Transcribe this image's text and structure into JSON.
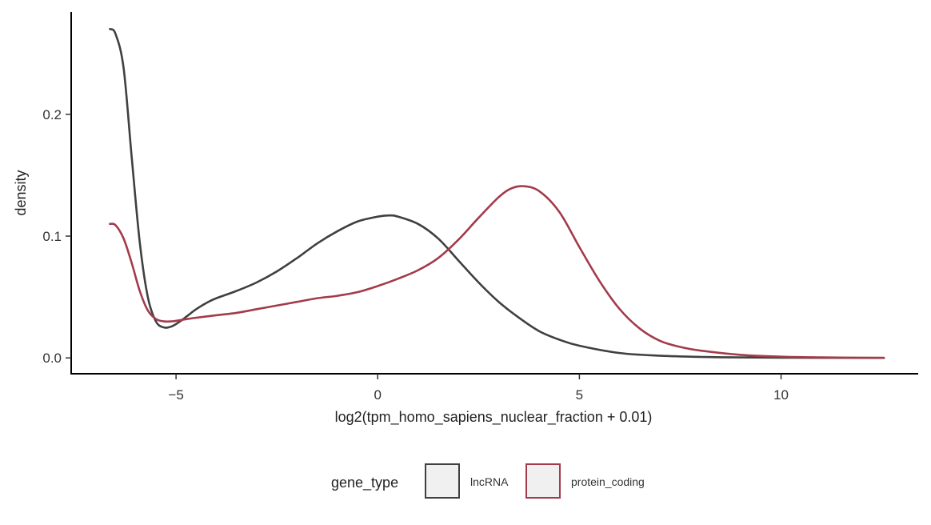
{
  "chart_data": {
    "type": "line",
    "title": "",
    "xlabel": "log2(tpm_homo_sapiens_nuclear_fraction + 0.01)",
    "ylabel": "density",
    "xlim": [
      -7.6,
      13.4
    ],
    "ylim": [
      -0.013,
      0.284
    ],
    "xticks": [
      {
        "value": -5,
        "label": "−5"
      },
      {
        "value": 0,
        "label": "0"
      },
      {
        "value": 5,
        "label": "5"
      },
      {
        "value": 10,
        "label": "10"
      }
    ],
    "yticks": [
      {
        "value": 0.0,
        "label": "0.0"
      },
      {
        "value": 0.1,
        "label": "0.1"
      },
      {
        "value": 0.2,
        "label": "0.2"
      }
    ],
    "grid": false,
    "legend": {
      "title": "gene_type",
      "position": "bottom",
      "entries": [
        "lncRNA",
        "protein_coding"
      ]
    },
    "series": [
      {
        "name": "lncRNA",
        "color": "#404040",
        "x": [
          -6.64,
          -6.5,
          -6.3,
          -6.1,
          -5.9,
          -5.7,
          -5.5,
          -5.3,
          -5.1,
          -4.9,
          -4.7,
          -4.5,
          -4.2,
          -4.0,
          -3.5,
          -3.0,
          -2.5,
          -2.0,
          -1.5,
          -1.0,
          -0.5,
          0.0,
          0.3,
          0.5,
          1.0,
          1.5,
          2.0,
          2.5,
          3.0,
          3.5,
          4.0,
          4.5,
          5.0,
          6.0,
          7.0,
          8.0,
          9.0,
          10.0,
          11.0,
          12.55
        ],
        "y": [
          0.27,
          0.266,
          0.238,
          0.165,
          0.095,
          0.05,
          0.03,
          0.025,
          0.026,
          0.03,
          0.035,
          0.04,
          0.046,
          0.049,
          0.055,
          0.062,
          0.071,
          0.082,
          0.094,
          0.104,
          0.112,
          0.116,
          0.117,
          0.116,
          0.11,
          0.098,
          0.08,
          0.062,
          0.046,
          0.033,
          0.022,
          0.015,
          0.01,
          0.004,
          0.0018,
          0.0008,
          0.0004,
          0.0002,
          0.0001,
          0.0
        ]
      },
      {
        "name": "protein_coding",
        "color": "#a33b4b",
        "x": [
          -6.64,
          -6.5,
          -6.3,
          -6.1,
          -5.9,
          -5.7,
          -5.5,
          -5.3,
          -5.1,
          -4.9,
          -4.5,
          -4.0,
          -3.5,
          -3.0,
          -2.5,
          -2.0,
          -1.5,
          -1.0,
          -0.5,
          0.0,
          0.5,
          1.0,
          1.5,
          2.0,
          2.5,
          3.0,
          3.3,
          3.6,
          4.0,
          4.5,
          5.0,
          5.5,
          6.0,
          6.5,
          7.0,
          7.5,
          8.0,
          9.0,
          10.0,
          11.0,
          12.55
        ],
        "y": [
          0.11,
          0.109,
          0.098,
          0.078,
          0.055,
          0.039,
          0.032,
          0.03,
          0.03,
          0.031,
          0.033,
          0.035,
          0.037,
          0.04,
          0.043,
          0.046,
          0.049,
          0.051,
          0.054,
          0.059,
          0.065,
          0.072,
          0.082,
          0.097,
          0.115,
          0.132,
          0.139,
          0.141,
          0.137,
          0.12,
          0.091,
          0.063,
          0.04,
          0.024,
          0.014,
          0.009,
          0.006,
          0.0025,
          0.001,
          0.0004,
          0.0
        ]
      }
    ]
  }
}
